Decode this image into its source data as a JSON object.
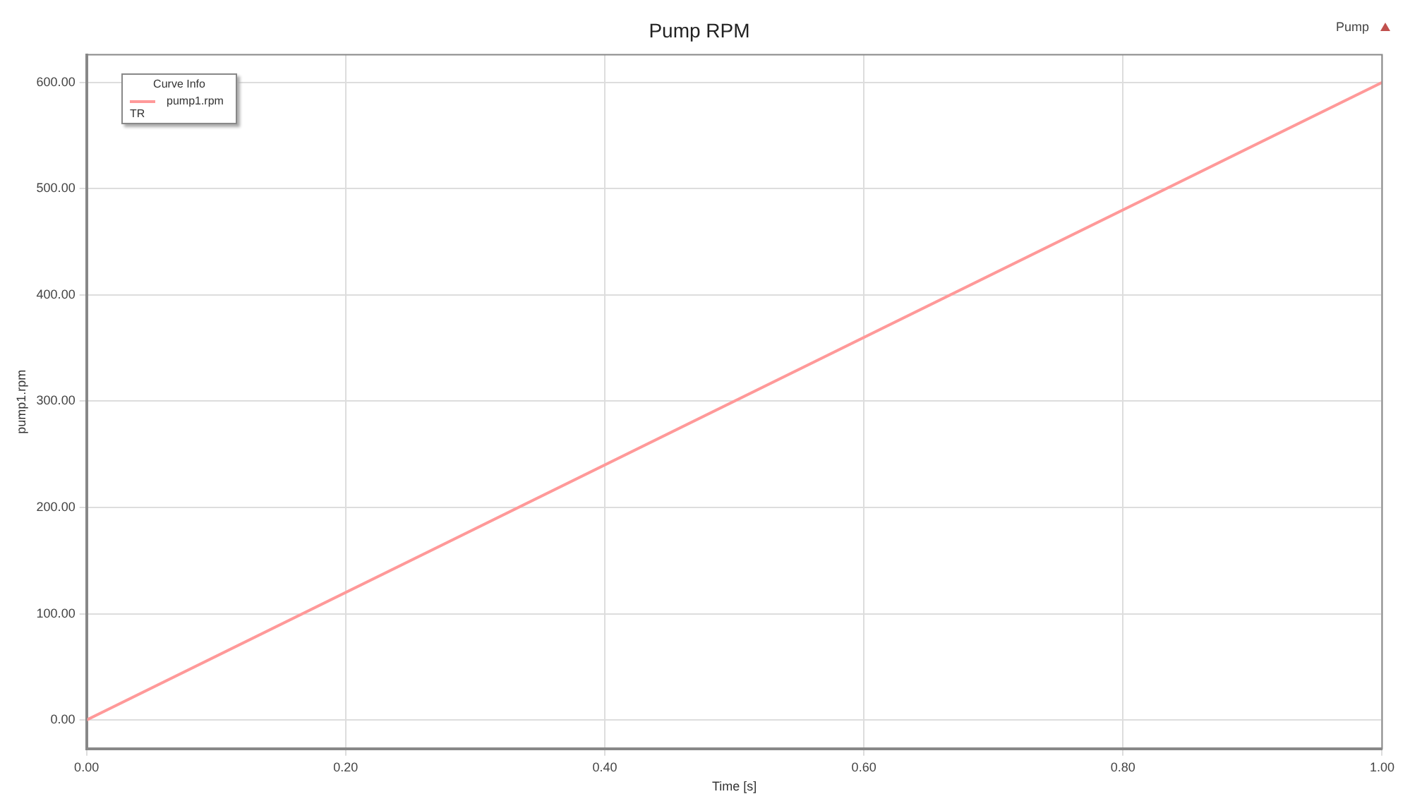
{
  "chart_data": {
    "type": "line",
    "title": "Pump RPM",
    "xlabel": "Time [s]",
    "ylabel": "pump1.rpm",
    "legend_title": "Curve Info",
    "annotations": [
      "TR",
      "Pump"
    ],
    "x": [
      0,
      1
    ],
    "series": [
      {
        "name": "pump1.rpm",
        "color": "#ff9999",
        "values": [
          0,
          600
        ]
      }
    ],
    "xlim": [
      0,
      1
    ],
    "xticks": [
      {
        "value": 0,
        "label": "0.00"
      },
      {
        "value": 0.2,
        "label": "0.20"
      },
      {
        "value": 0.4,
        "label": "0.40"
      },
      {
        "value": 0.6,
        "label": "0.60"
      },
      {
        "value": 0.8,
        "label": "0.80"
      },
      {
        "value": 1,
        "label": "1.00"
      }
    ],
    "ylim": [
      -27,
      626
    ],
    "yticks": [
      {
        "value": 0,
        "label": "0.00"
      },
      {
        "value": 100,
        "label": "100.00"
      },
      {
        "value": 200,
        "label": "200.00"
      },
      {
        "value": 300,
        "label": "300.00"
      },
      {
        "value": 400,
        "label": "400.00"
      },
      {
        "value": 500,
        "label": "500.00"
      },
      {
        "value": 600,
        "label": "600.00"
      }
    ],
    "grid": true,
    "legend": "top left",
    "marker": "none",
    "line_style": "solid"
  }
}
